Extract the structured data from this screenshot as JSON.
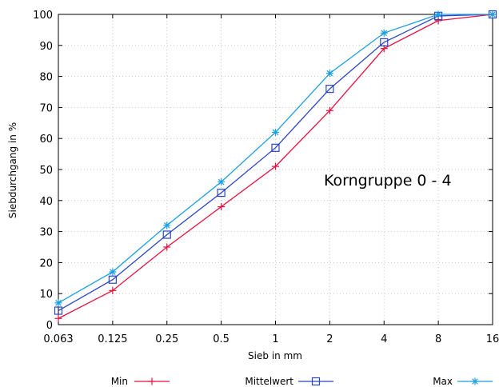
{
  "chart_data": {
    "type": "line",
    "title": "",
    "xlabel": "Sieb in mm",
    "ylabel": "Siebdurchgang in %",
    "x_scale": "log",
    "categories": [
      "0.063",
      "0.125",
      "0.25",
      "0.5",
      "1",
      "2",
      "4",
      "8",
      "16"
    ],
    "ylim": [
      0,
      100
    ],
    "yticks": [
      "0",
      "10",
      "20",
      "30",
      "40",
      "50",
      "60",
      "70",
      "80",
      "90",
      "100"
    ],
    "grid": true,
    "annotation": "Korngruppe 0 - 4",
    "legend_position": "bottom",
    "series": [
      {
        "name": "Min",
        "marker": "plus",
        "color": "#e8103e",
        "values": [
          2,
          11,
          25,
          38,
          51,
          69,
          89,
          98,
          100
        ]
      },
      {
        "name": "Mittelwert",
        "marker": "square",
        "color": "#2a45c4",
        "values": [
          4.5,
          14.5,
          29,
          42.5,
          57,
          76,
          91,
          99.5,
          100
        ]
      },
      {
        "name": "Max",
        "marker": "star",
        "color": "#1aa0e0",
        "values": [
          7,
          17,
          32,
          46,
          62,
          81,
          94,
          100,
          100
        ]
      }
    ]
  }
}
